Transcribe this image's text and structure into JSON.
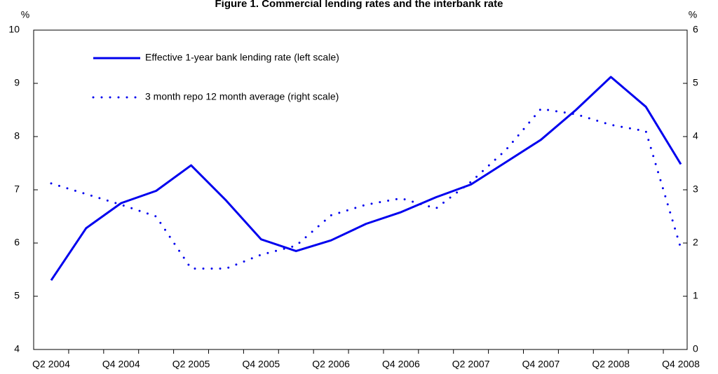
{
  "chart_data": {
    "type": "line",
    "title": "Figure 1. Commercial lending rates and the interbank rate",
    "y_label": "%",
    "y2_label": "%",
    "categories": [
      "Q2 2004",
      null,
      "Q4 2004",
      null,
      "Q2 2005",
      null,
      "Q4 2005",
      null,
      "Q2 2006",
      null,
      "Q4 2006",
      null,
      "Q2 2007",
      null,
      "Q4 2007",
      null,
      "Q2 2008",
      null,
      "Q4 2008"
    ],
    "series": [
      {
        "name": "Effective 1-year bank lending rate (left scale)",
        "color": "#0000ee",
        "style": "solid",
        "values": [
          5.3,
          6.28,
          6.75,
          6.98,
          7.46,
          6.8,
          6.07,
          5.85,
          6.05,
          6.36,
          6.58,
          6.86,
          7.1,
          7.52,
          7.94,
          8.5,
          9.12,
          8.56,
          7.48
        ]
      },
      {
        "name": "3 month repo 12 month average (right scale)",
        "color": "#0000ee",
        "style": "dotted",
        "axis": "y2",
        "values": [
          3.12,
          2.92,
          2.72,
          2.5,
          1.52,
          1.52,
          1.78,
          1.95,
          2.52,
          2.72,
          2.84,
          2.65,
          3.15,
          3.75,
          4.52,
          4.42,
          4.22,
          4.1,
          1.9
        ]
      }
    ],
    "ylim": [
      4,
      10
    ],
    "yticks": [
      4,
      5,
      6,
      7,
      8,
      9,
      10
    ],
    "y2lim": [
      0,
      6
    ],
    "y2ticks": [
      0,
      1,
      2,
      3,
      4,
      5,
      6
    ],
    "grid": false,
    "legend": "top-left"
  }
}
